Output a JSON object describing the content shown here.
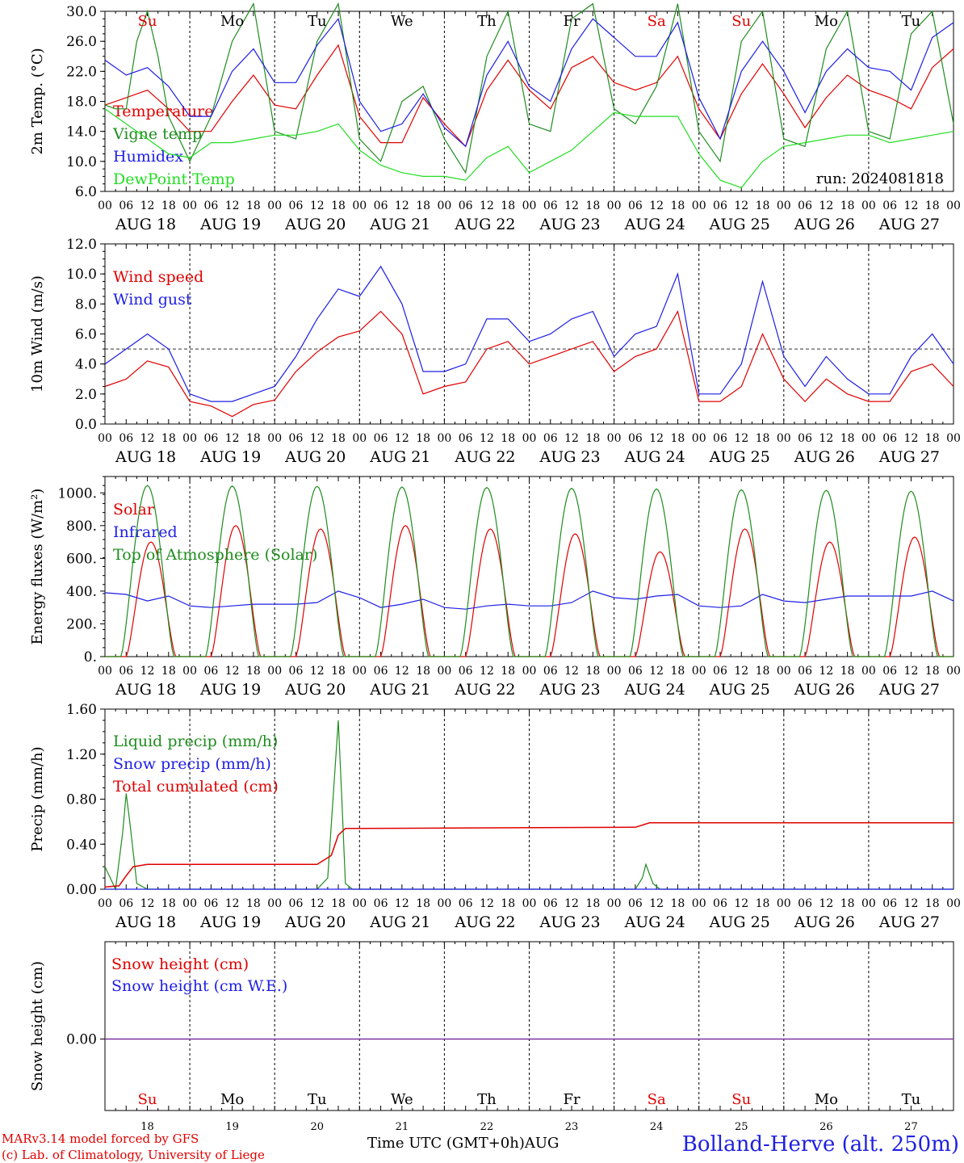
{
  "colors": {
    "red": "#e00000",
    "green": "#1e8c1e",
    "blue": "#1e1ee6",
    "lightgreen": "#22dd22",
    "purple": "#7a2a9a"
  },
  "chart_data": [
    {
      "type": "line",
      "title": "",
      "ylabel": "2m Temp. (°C)",
      "ylim": [
        6,
        30
      ],
      "yticks": [
        "6.0",
        "10.0",
        "14.0",
        "18.0",
        "22.0",
        "26.0",
        "30.0"
      ],
      "annotation": "run: 2024081818",
      "series": [
        {
          "name": "Temperature",
          "color": "red",
          "x": [
            0,
            6,
            12,
            18,
            24,
            30,
            36,
            42,
            48,
            54,
            60,
            66,
            72,
            78,
            84,
            90,
            96,
            102,
            108,
            114,
            120,
            126,
            132,
            138,
            144,
            150,
            156,
            162,
            168,
            174,
            180,
            186,
            192,
            198,
            204,
            210,
            216,
            222,
            228,
            234,
            240
          ],
          "values": [
            17.5,
            18.5,
            19.5,
            17,
            14,
            14,
            18,
            21.5,
            17.5,
            17,
            21.5,
            25.5,
            16,
            12.5,
            12.5,
            18.5,
            15,
            12,
            19.5,
            23.5,
            19.5,
            17,
            22.5,
            24,
            20.5,
            19.5,
            20.5,
            24,
            17,
            13,
            19,
            23,
            19,
            14.5,
            18.5,
            21.5,
            19.5,
            18.5,
            17,
            22.5,
            25
          ]
        },
        {
          "name": "Vigne temp",
          "color": "green",
          "x": [
            0,
            3,
            6,
            9,
            12,
            15,
            18,
            24,
            30,
            36,
            42,
            48,
            54,
            60,
            66,
            72,
            78,
            84,
            90,
            96,
            102,
            108,
            114,
            120,
            126,
            132,
            138,
            144,
            150,
            156,
            162,
            168,
            174,
            180,
            186,
            192,
            198,
            204,
            210,
            216,
            222,
            228,
            234,
            240
          ],
          "values": [
            17.5,
            17,
            17,
            26,
            30,
            24,
            16,
            10,
            16,
            26,
            31,
            14,
            13,
            26,
            31,
            13,
            10,
            18,
            20,
            13,
            8.5,
            24,
            30,
            15,
            14,
            29,
            31,
            17,
            15,
            20,
            31,
            14,
            10,
            26,
            30,
            13,
            12,
            25,
            30,
            14,
            13,
            27,
            30,
            15
          ]
        },
        {
          "name": "Humidex",
          "color": "blue",
          "x": [
            0,
            6,
            12,
            18,
            24,
            30,
            36,
            42,
            48,
            54,
            60,
            66,
            72,
            78,
            84,
            90,
            96,
            102,
            108,
            114,
            120,
            126,
            132,
            138,
            144,
            150,
            156,
            162,
            168,
            174,
            180,
            186,
            192,
            198,
            204,
            210,
            216,
            222,
            228,
            234,
            240
          ],
          "values": [
            23.5,
            21.5,
            22.5,
            20,
            16,
            16,
            22,
            25,
            20.5,
            20.5,
            25.5,
            29,
            18,
            14,
            15,
            19,
            14.5,
            12,
            21.5,
            26,
            20,
            18,
            25,
            29,
            26.5,
            24,
            24,
            28.5,
            18.5,
            13,
            22,
            26,
            22,
            16.5,
            22,
            25,
            22.5,
            22,
            19.5,
            26.5,
            28.5
          ]
        },
        {
          "name": "DewPoint Temp",
          "color": "lightgreen",
          "x": [
            0,
            6,
            12,
            18,
            24,
            30,
            36,
            42,
            48,
            54,
            60,
            66,
            72,
            78,
            84,
            90,
            96,
            102,
            108,
            114,
            120,
            126,
            132,
            138,
            144,
            150,
            156,
            162,
            168,
            174,
            180,
            186,
            192,
            198,
            204,
            210,
            216,
            222,
            228,
            234,
            240
          ],
          "values": [
            17,
            15,
            13,
            11,
            10.5,
            12.5,
            12.5,
            13,
            13.5,
            13.5,
            14,
            15,
            11.5,
            9.5,
            8.5,
            8,
            8,
            7.5,
            10.5,
            12,
            8.5,
            10,
            11.5,
            14,
            16.5,
            16,
            16,
            16,
            11,
            7.5,
            6.5,
            10,
            12,
            12.5,
            13,
            13.5,
            13.5,
            12.5,
            13,
            13.5,
            14
          ]
        }
      ]
    },
    {
      "type": "line",
      "title": "",
      "ylabel": "10m Wind (m/s)",
      "ylim": [
        0,
        12
      ],
      "yticks": [
        "0.0",
        "2.0",
        "4.0",
        "6.0",
        "8.0",
        "10.0",
        "12.0"
      ],
      "reference_line": 5,
      "series": [
        {
          "name": "Wind speed",
          "color": "red",
          "x": [
            0,
            6,
            12,
            18,
            24,
            30,
            36,
            42,
            48,
            54,
            60,
            66,
            72,
            78,
            84,
            90,
            96,
            102,
            108,
            114,
            120,
            126,
            132,
            138,
            144,
            150,
            156,
            162,
            168,
            174,
            180,
            186,
            192,
            198,
            204,
            210,
            216,
            222,
            228,
            234,
            240
          ],
          "values": [
            2.5,
            3,
            4.2,
            3.8,
            1.5,
            1.2,
            0.5,
            1.3,
            1.6,
            3.5,
            4.8,
            5.8,
            6.2,
            7.5,
            6,
            2,
            2.5,
            2.8,
            5,
            5.5,
            4,
            4.5,
            5,
            5.5,
            3.5,
            4.5,
            5,
            7.5,
            1.5,
            1.5,
            2.5,
            6,
            3,
            1.5,
            3,
            2,
            1.5,
            1.5,
            3.5,
            4,
            2.5
          ]
        },
        {
          "name": "Wind gust",
          "color": "blue",
          "x": [
            0,
            6,
            12,
            18,
            24,
            30,
            36,
            42,
            48,
            54,
            60,
            66,
            72,
            78,
            84,
            90,
            96,
            102,
            108,
            114,
            120,
            126,
            132,
            138,
            144,
            150,
            156,
            162,
            168,
            174,
            180,
            186,
            192,
            198,
            204,
            210,
            216,
            222,
            228,
            234,
            240
          ],
          "values": [
            4,
            5,
            6,
            5,
            2,
            1.5,
            1.5,
            2,
            2.5,
            4.5,
            7,
            9,
            8.5,
            10.5,
            8,
            3.5,
            3.5,
            4,
            7,
            7,
            5.5,
            6,
            7,
            7.5,
            4.5,
            6,
            6.5,
            10,
            2,
            2,
            4,
            9.5,
            4.5,
            2.5,
            4.5,
            3,
            2,
            2,
            4.5,
            6,
            4
          ]
        }
      ]
    },
    {
      "type": "line",
      "title": "",
      "ylabel": "Energy fluxes (W/m²)",
      "ylim": [
        0,
        1100
      ],
      "yticks": [
        "0.",
        "200.",
        "400.",
        "600.",
        "800.",
        "1000."
      ],
      "series": [
        {
          "name": "Solar",
          "color": "red",
          "peak_hour": 13,
          "daily_peaks": [
            700,
            800,
            780,
            800,
            780,
            750,
            640,
            780,
            700,
            730
          ],
          "half_width_h": 7
        },
        {
          "name": "Infrared",
          "color": "blue",
          "x": [
            0,
            6,
            12,
            18,
            24,
            30,
            36,
            42,
            48,
            54,
            60,
            66,
            72,
            78,
            84,
            90,
            96,
            102,
            108,
            114,
            120,
            126,
            132,
            138,
            144,
            150,
            156,
            162,
            168,
            174,
            180,
            186,
            192,
            198,
            204,
            210,
            216,
            222,
            228,
            234,
            240
          ],
          "values": [
            390,
            380,
            340,
            370,
            310,
            300,
            310,
            320,
            320,
            320,
            330,
            400,
            360,
            300,
            320,
            350,
            300,
            290,
            310,
            320,
            310,
            310,
            330,
            400,
            360,
            350,
            370,
            380,
            310,
            300,
            310,
            380,
            340,
            330,
            350,
            370,
            370,
            370,
            370,
            400,
            340
          ]
        },
        {
          "name": "Top of Atmosphere (Solar)",
          "color": "green",
          "peak_hour": 12,
          "daily_peaks": [
            1045,
            1042,
            1040,
            1036,
            1033,
            1028,
            1024,
            1019,
            1015,
            1010
          ],
          "half_width_h": 7.5
        }
      ]
    },
    {
      "type": "line",
      "title": "",
      "ylabel": "Precip (mm/h)",
      "ylim": [
        0,
        1.6
      ],
      "yticks": [
        "0.00",
        "0.40",
        "0.80",
        "1.20",
        "1.60"
      ],
      "series": [
        {
          "name": "Liquid precip (mm/h)",
          "color": "green",
          "x": [
            0,
            3,
            5,
            6,
            7,
            9,
            12,
            60,
            63,
            66,
            67,
            68,
            70,
            72,
            150,
            152,
            153,
            155,
            157,
            240
          ],
          "values": [
            0.2,
            0,
            0.5,
            0.85,
            0.6,
            0.05,
            0,
            0,
            0.1,
            1.5,
            0.8,
            0.05,
            0,
            0,
            0,
            0.1,
            0.22,
            0.05,
            0,
            0
          ]
        },
        {
          "name": "Snow precip (mm/h)",
          "color": "blue",
          "x": [
            0,
            240
          ],
          "values": [
            0,
            0
          ]
        },
        {
          "name": "Total cumulated (cm)",
          "color": "red",
          "x": [
            0,
            4,
            6,
            8,
            12,
            60,
            64,
            66,
            68,
            72,
            150,
            152,
            154,
            240
          ],
          "values": [
            0.02,
            0.03,
            0.12,
            0.2,
            0.22,
            0.22,
            0.3,
            0.48,
            0.54,
            0.54,
            0.55,
            0.57,
            0.59,
            0.59
          ]
        }
      ]
    },
    {
      "type": "line",
      "title": "",
      "ylabel": "Snow height (cm)",
      "yticks": [
        "0.00"
      ],
      "series": [
        {
          "name": "Snow height (cm)",
          "color": "red",
          "x": [
            0,
            240
          ],
          "values": [
            0,
            0
          ]
        },
        {
          "name": "Snow height (cm W.E.)",
          "color": "blue",
          "x": [
            0,
            240
          ],
          "values": [
            0,
            0
          ]
        }
      ]
    }
  ],
  "x_axis": {
    "hour_labels": [
      "00",
      "06",
      "12",
      "18"
    ],
    "end_label": "00",
    "date_labels": [
      "AUG 18",
      "AUG 19",
      "AUG 20",
      "AUG 21",
      "AUG 22",
      "AUG 23",
      "AUG 24",
      "AUG 25",
      "AUG 26",
      "AUG 27"
    ],
    "day_abbrevs": [
      "Su",
      "Mo",
      "Tu",
      "We",
      "Th",
      "Fr",
      "Sa",
      "Su",
      "Mo",
      "Tu"
    ],
    "weekend_flags": [
      true,
      false,
      false,
      false,
      false,
      false,
      true,
      true,
      false,
      false
    ],
    "day_numbers": [
      "18",
      "19",
      "20",
      "21",
      "22",
      "23",
      "24",
      "25",
      "26",
      "27"
    ]
  },
  "footer": {
    "credit_line1": "MARv3.14 model forced by GFS",
    "credit_line2": "(c) Lab. of Climatology, University of Liege",
    "time_label": "Time UTC (GMT+0h)",
    "month_label": "AUG",
    "station": "Bolland-Herve (alt. 250m)"
  }
}
